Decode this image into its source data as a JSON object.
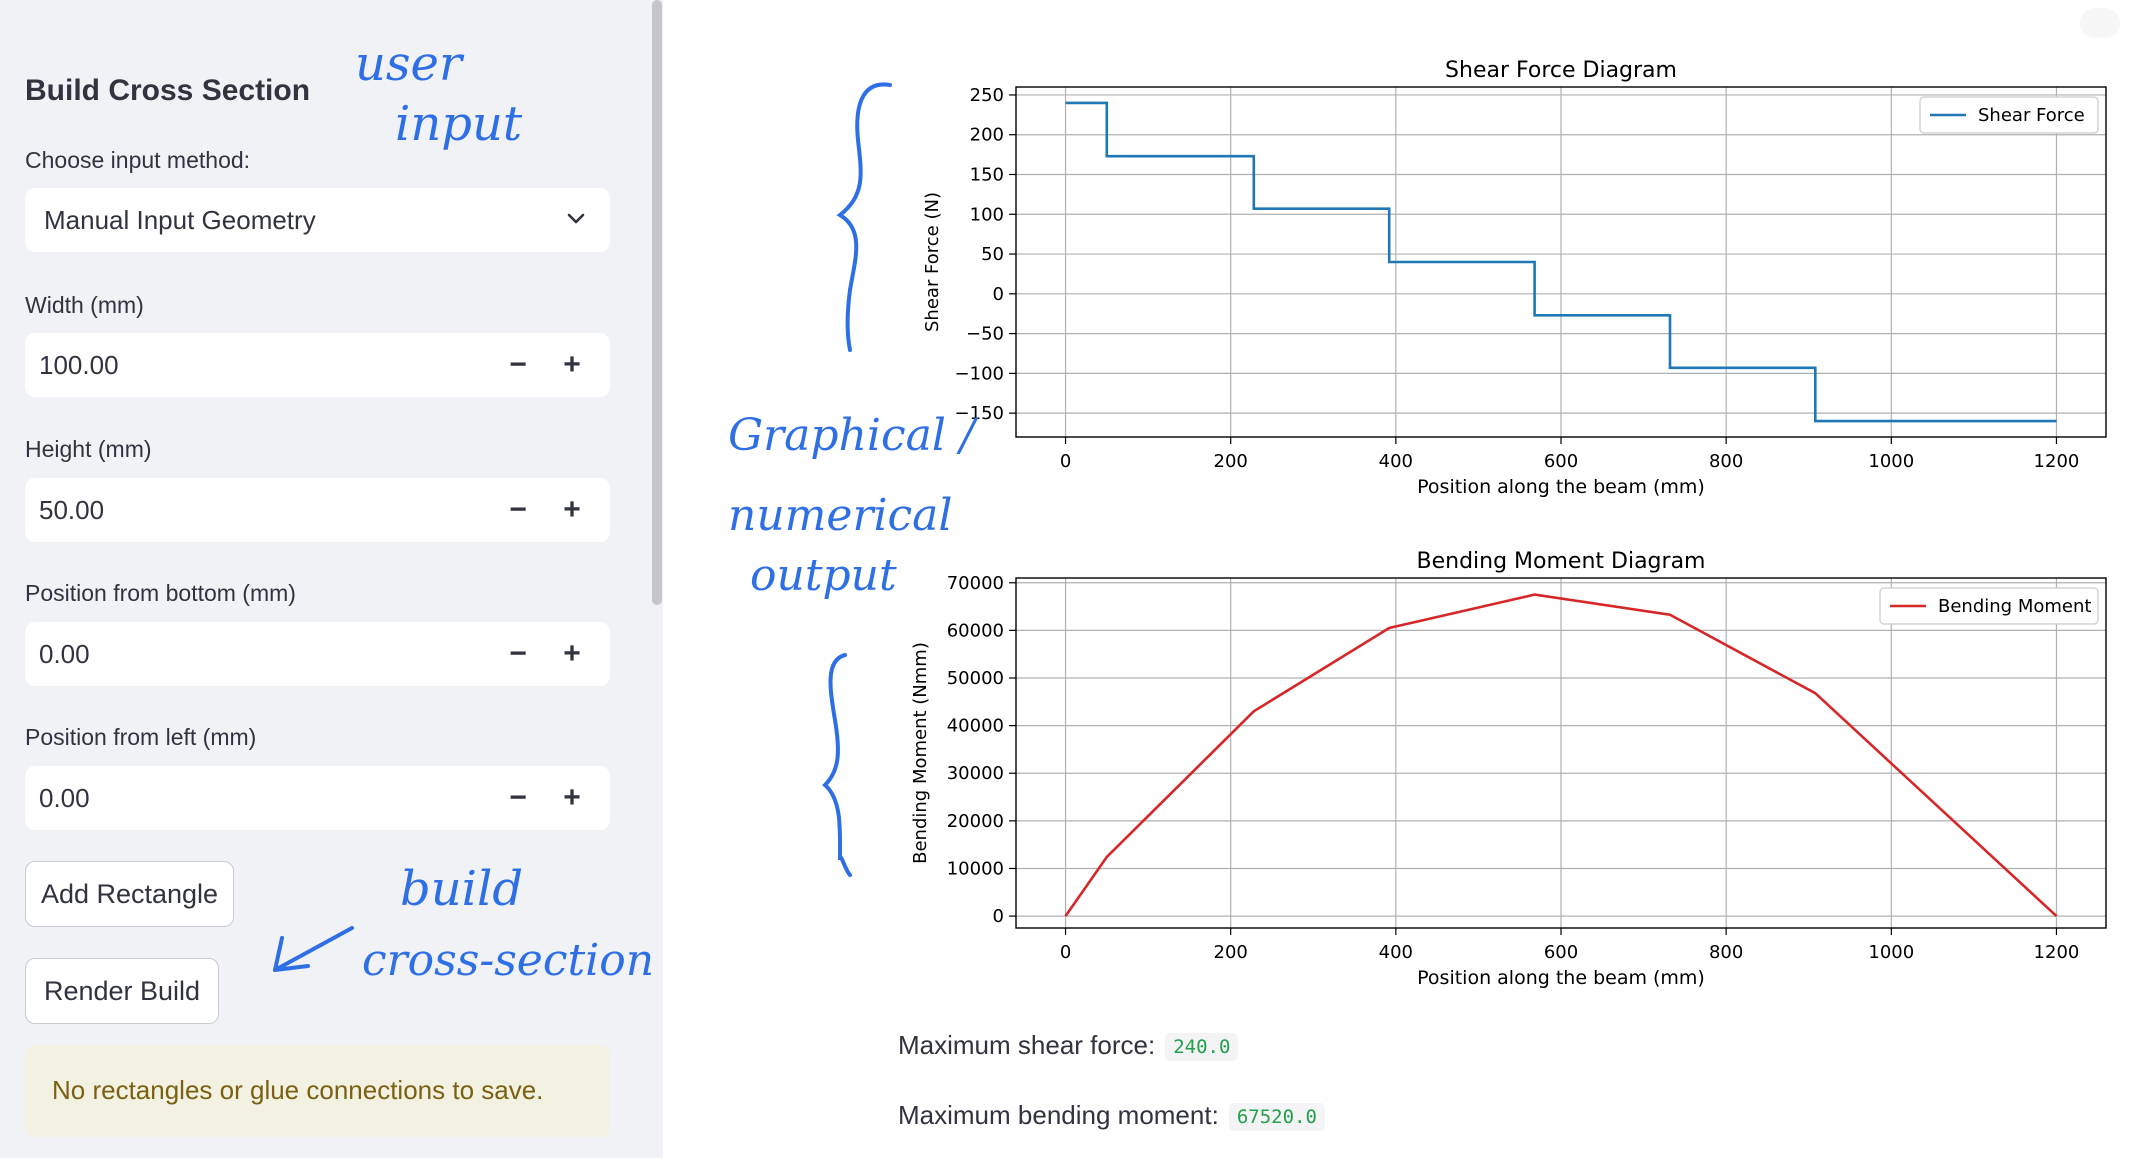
{
  "sidebar": {
    "title": "Build Cross Section",
    "input_method_label": "Choose input method:",
    "input_method_value": "Manual Input Geometry",
    "fields": [
      {
        "label": "Width (mm)",
        "value": "100.00"
      },
      {
        "label": "Height (mm)",
        "value": "50.00"
      },
      {
        "label": "Position from bottom (mm)",
        "value": "0.00"
      },
      {
        "label": "Position from left (mm)",
        "value": "0.00"
      }
    ],
    "stepper_minus": "−",
    "stepper_plus": "+",
    "add_button": "Add Rectangle",
    "render_button": "Render Build",
    "warning": "No rectangles or glue connections to save."
  },
  "annotations": {
    "user_input": [
      "user",
      "input"
    ],
    "graphical": [
      "Graphical /",
      "numerical",
      "output"
    ],
    "build": [
      "build",
      "cross-section"
    ]
  },
  "metrics": {
    "max_shear_label": "Maximum shear force:",
    "max_shear_value": "240.0",
    "max_moment_label": "Maximum bending moment:",
    "max_moment_value": "67520.0"
  },
  "chart_data": [
    {
      "type": "line",
      "title": "Shear Force Diagram",
      "xlabel": "Position along the beam (mm)",
      "ylabel": "Shear Force (N)",
      "xlim": [
        -60,
        1260
      ],
      "ylim": [
        -180,
        260
      ],
      "xticks": [
        0,
        200,
        400,
        600,
        800,
        1000,
        1200
      ],
      "yticks": [
        -150,
        -100,
        -50,
        0,
        50,
        100,
        150,
        200,
        250
      ],
      "ytick_labels": [
        "−150",
        "−100",
        "−50",
        "0",
        "50",
        "100",
        "150",
        "200",
        "250"
      ],
      "grid": true,
      "legend": "top-right",
      "color": "#1f77b4",
      "series": [
        {
          "name": "Shear Force",
          "x": [
            0,
            50,
            50,
            228,
            228,
            392,
            392,
            568,
            568,
            732,
            732,
            908,
            908,
            1200
          ],
          "y": [
            240,
            240,
            173,
            173,
            107,
            107,
            40,
            40,
            -27,
            -27,
            -93,
            -93,
            -160,
            -160
          ]
        }
      ]
    },
    {
      "type": "line",
      "title": "Bending Moment Diagram",
      "xlabel": "Position along the beam (mm)",
      "ylabel": "Bending Moment (Nmm)",
      "xlim": [
        -60,
        1260
      ],
      "ylim": [
        -2500,
        71000
      ],
      "xticks": [
        0,
        200,
        400,
        600,
        800,
        1000,
        1200
      ],
      "yticks": [
        0,
        10000,
        20000,
        30000,
        40000,
        50000,
        60000,
        70000
      ],
      "ytick_labels": [
        "0",
        "10000",
        "20000",
        "30000",
        "40000",
        "50000",
        "60000",
        "70000"
      ],
      "grid": true,
      "legend": "top-right",
      "color": "#d62728",
      "series": [
        {
          "name": "Bending Moment",
          "x": [
            0,
            50,
            228,
            392,
            568,
            732,
            908,
            1200
          ],
          "y": [
            0,
            12400,
            43000,
            60500,
            67520,
            63300,
            46800,
            0
          ]
        }
      ]
    }
  ]
}
